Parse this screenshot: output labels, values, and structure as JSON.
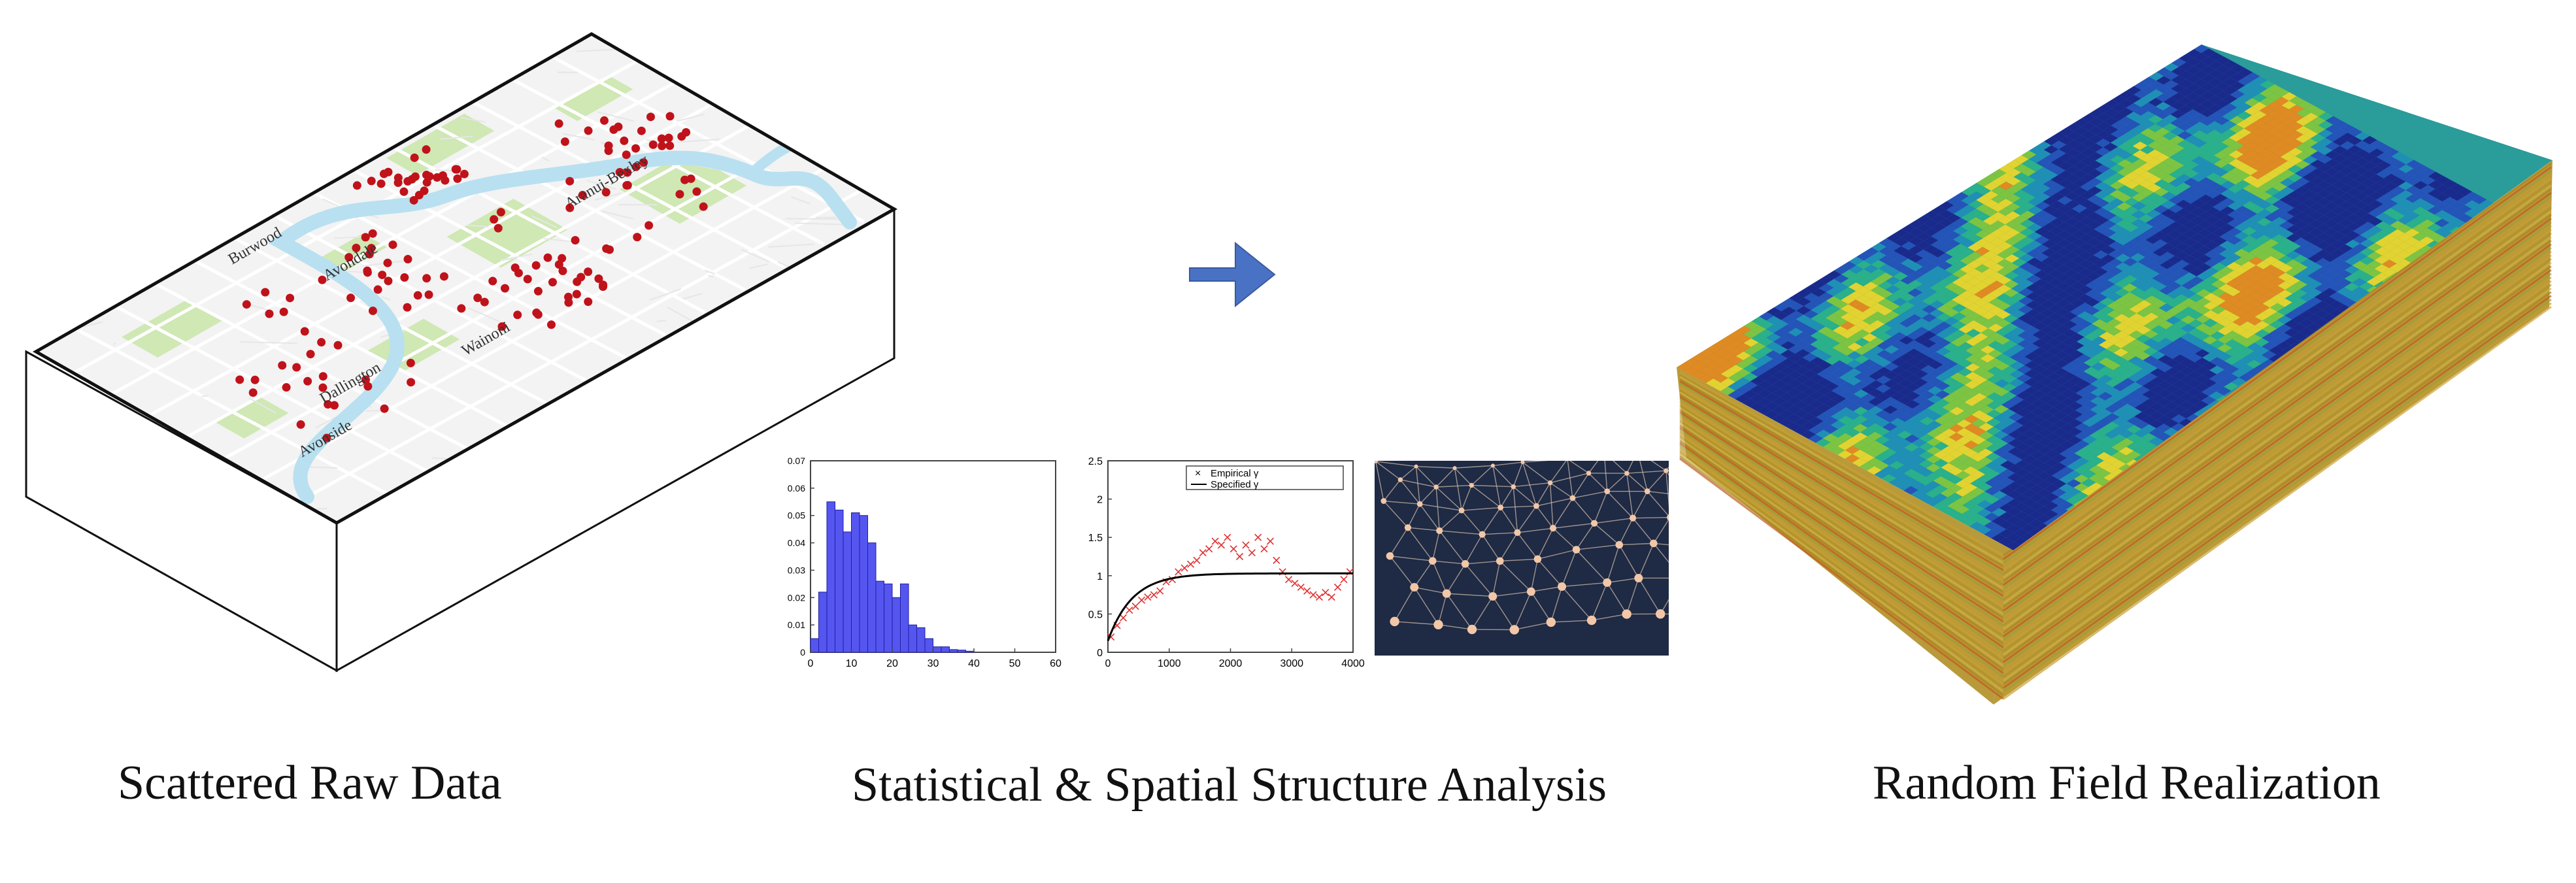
{
  "captions": {
    "left": "Scattered Raw Data",
    "middle": "Statistical & Spatial Structure Analysis",
    "right": "Random Field Realization"
  },
  "map": {
    "suburb_labels": [
      "Burwood",
      "Avondale",
      "Aranui-Bexley",
      "Wainoni",
      "Dallington",
      "Avonside"
    ],
    "colors": {
      "land": "#f3f3f3",
      "park": "#cfe8b4",
      "river": "#b8e0f0",
      "road": "#ffffff",
      "point": "#c0121a"
    }
  },
  "arrow": {
    "color": "#4a72c4"
  },
  "chart_data": [
    {
      "type": "bar",
      "ylim": [
        0,
        0.07
      ],
      "xlim": [
        0,
        60
      ],
      "x_ticks": [
        "0",
        "10",
        "20",
        "30",
        "40",
        "50",
        "60"
      ],
      "y_ticks": [
        "0",
        "0.01",
        "0.02",
        "0.03",
        "0.04",
        "0.05",
        "0.06",
        "0.07"
      ],
      "bin_width": 2,
      "bin_start": 0,
      "values": [
        0.005,
        0.022,
        0.055,
        0.052,
        0.044,
        0.051,
        0.05,
        0.04,
        0.026,
        0.025,
        0.02,
        0.025,
        0.01,
        0.009,
        0.005,
        0.002,
        0.002,
        0.001,
        0.0008,
        0.0004
      ],
      "color": "#5555f0"
    },
    {
      "type": "scatter",
      "xlim": [
        0,
        4000
      ],
      "ylim": [
        0,
        2.5
      ],
      "x_ticks": [
        "0",
        "1000",
        "2000",
        "3000",
        "4000"
      ],
      "y_ticks": [
        "0",
        "0.5",
        "1",
        "1.5",
        "2",
        "2.5"
      ],
      "series": [
        {
          "name": "Empirical γ",
          "marker": "x",
          "color": "#e03030"
        },
        {
          "name": "Specified γ",
          "marker": "line",
          "color": "#000000"
        }
      ],
      "model": {
        "sill": 1.03,
        "range": 1200,
        "nugget": 0.15
      },
      "empirical_points": [
        [
          50,
          0.2
        ],
        [
          150,
          0.35
        ],
        [
          250,
          0.45
        ],
        [
          350,
          0.55
        ],
        [
          450,
          0.6
        ],
        [
          550,
          0.68
        ],
        [
          650,
          0.72
        ],
        [
          750,
          0.75
        ],
        [
          850,
          0.8
        ],
        [
          950,
          0.92
        ],
        [
          1050,
          0.95
        ],
        [
          1150,
          1.05
        ],
        [
          1250,
          1.1
        ],
        [
          1350,
          1.15
        ],
        [
          1450,
          1.2
        ],
        [
          1550,
          1.3
        ],
        [
          1650,
          1.35
        ],
        [
          1750,
          1.45
        ],
        [
          1850,
          1.4
        ],
        [
          1950,
          1.5
        ],
        [
          2050,
          1.35
        ],
        [
          2150,
          1.25
        ],
        [
          2250,
          1.4
        ],
        [
          2350,
          1.3
        ],
        [
          2450,
          1.5
        ],
        [
          2550,
          1.35
        ],
        [
          2650,
          1.45
        ],
        [
          2750,
          1.2
        ],
        [
          2850,
          1.05
        ],
        [
          2950,
          0.95
        ],
        [
          3050,
          0.9
        ],
        [
          3150,
          0.85
        ],
        [
          3250,
          0.8
        ],
        [
          3350,
          0.75
        ],
        [
          3450,
          0.72
        ],
        [
          3550,
          0.78
        ],
        [
          3650,
          0.72
        ],
        [
          3750,
          0.85
        ],
        [
          3850,
          0.95
        ],
        [
          3950,
          1.05
        ]
      ]
    }
  ],
  "network": {
    "background": "#1f2a44",
    "node": "#f2c7a8",
    "edge": "#c9b8a8"
  },
  "random_field": {
    "colors": [
      "#1a2a8c",
      "#2454b8",
      "#1f8fb5",
      "#2ab08a",
      "#7cc442",
      "#e2d330",
      "#e08a22",
      "#c8441e"
    ]
  }
}
